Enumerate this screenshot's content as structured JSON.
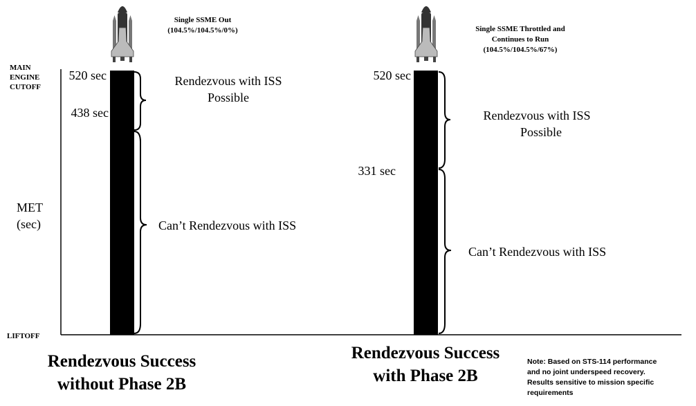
{
  "axis": {
    "top_label": [
      "MAIN",
      "ENGINE",
      "CUTOFF"
    ],
    "met_label": [
      "MET",
      "(sec)"
    ],
    "bottom_label": "LIFTOFF"
  },
  "panels": [
    {
      "engine_label": [
        "Single SSME Out",
        "(104.5%/104.5%/0%)"
      ],
      "top_time": "520 sec",
      "split_time": "438 sec",
      "upper_zone": [
        "Rendezvous with ISS",
        "Possible"
      ],
      "lower_zone": "Can’t Rendezvous with ISS",
      "caption": [
        "Rendezvous Success",
        "without Phase 2B"
      ]
    },
    {
      "engine_label": [
        "Single SSME Throttled and",
        "Continues to Run",
        "(104.5%/104.5%/67%)"
      ],
      "top_time": "520 sec",
      "split_time": "331 sec",
      "upper_zone": [
        "Rendezvous with ISS",
        "Possible"
      ],
      "lower_zone": "Can’t Rendezvous with ISS",
      "caption": [
        "Rendezvous Success",
        "with Phase 2B"
      ]
    }
  ],
  "note": [
    "Note:  Based on STS-114 performance",
    "and no joint underspeed recovery.",
    "Results sensitive to mission specific",
    "requirements"
  ]
}
